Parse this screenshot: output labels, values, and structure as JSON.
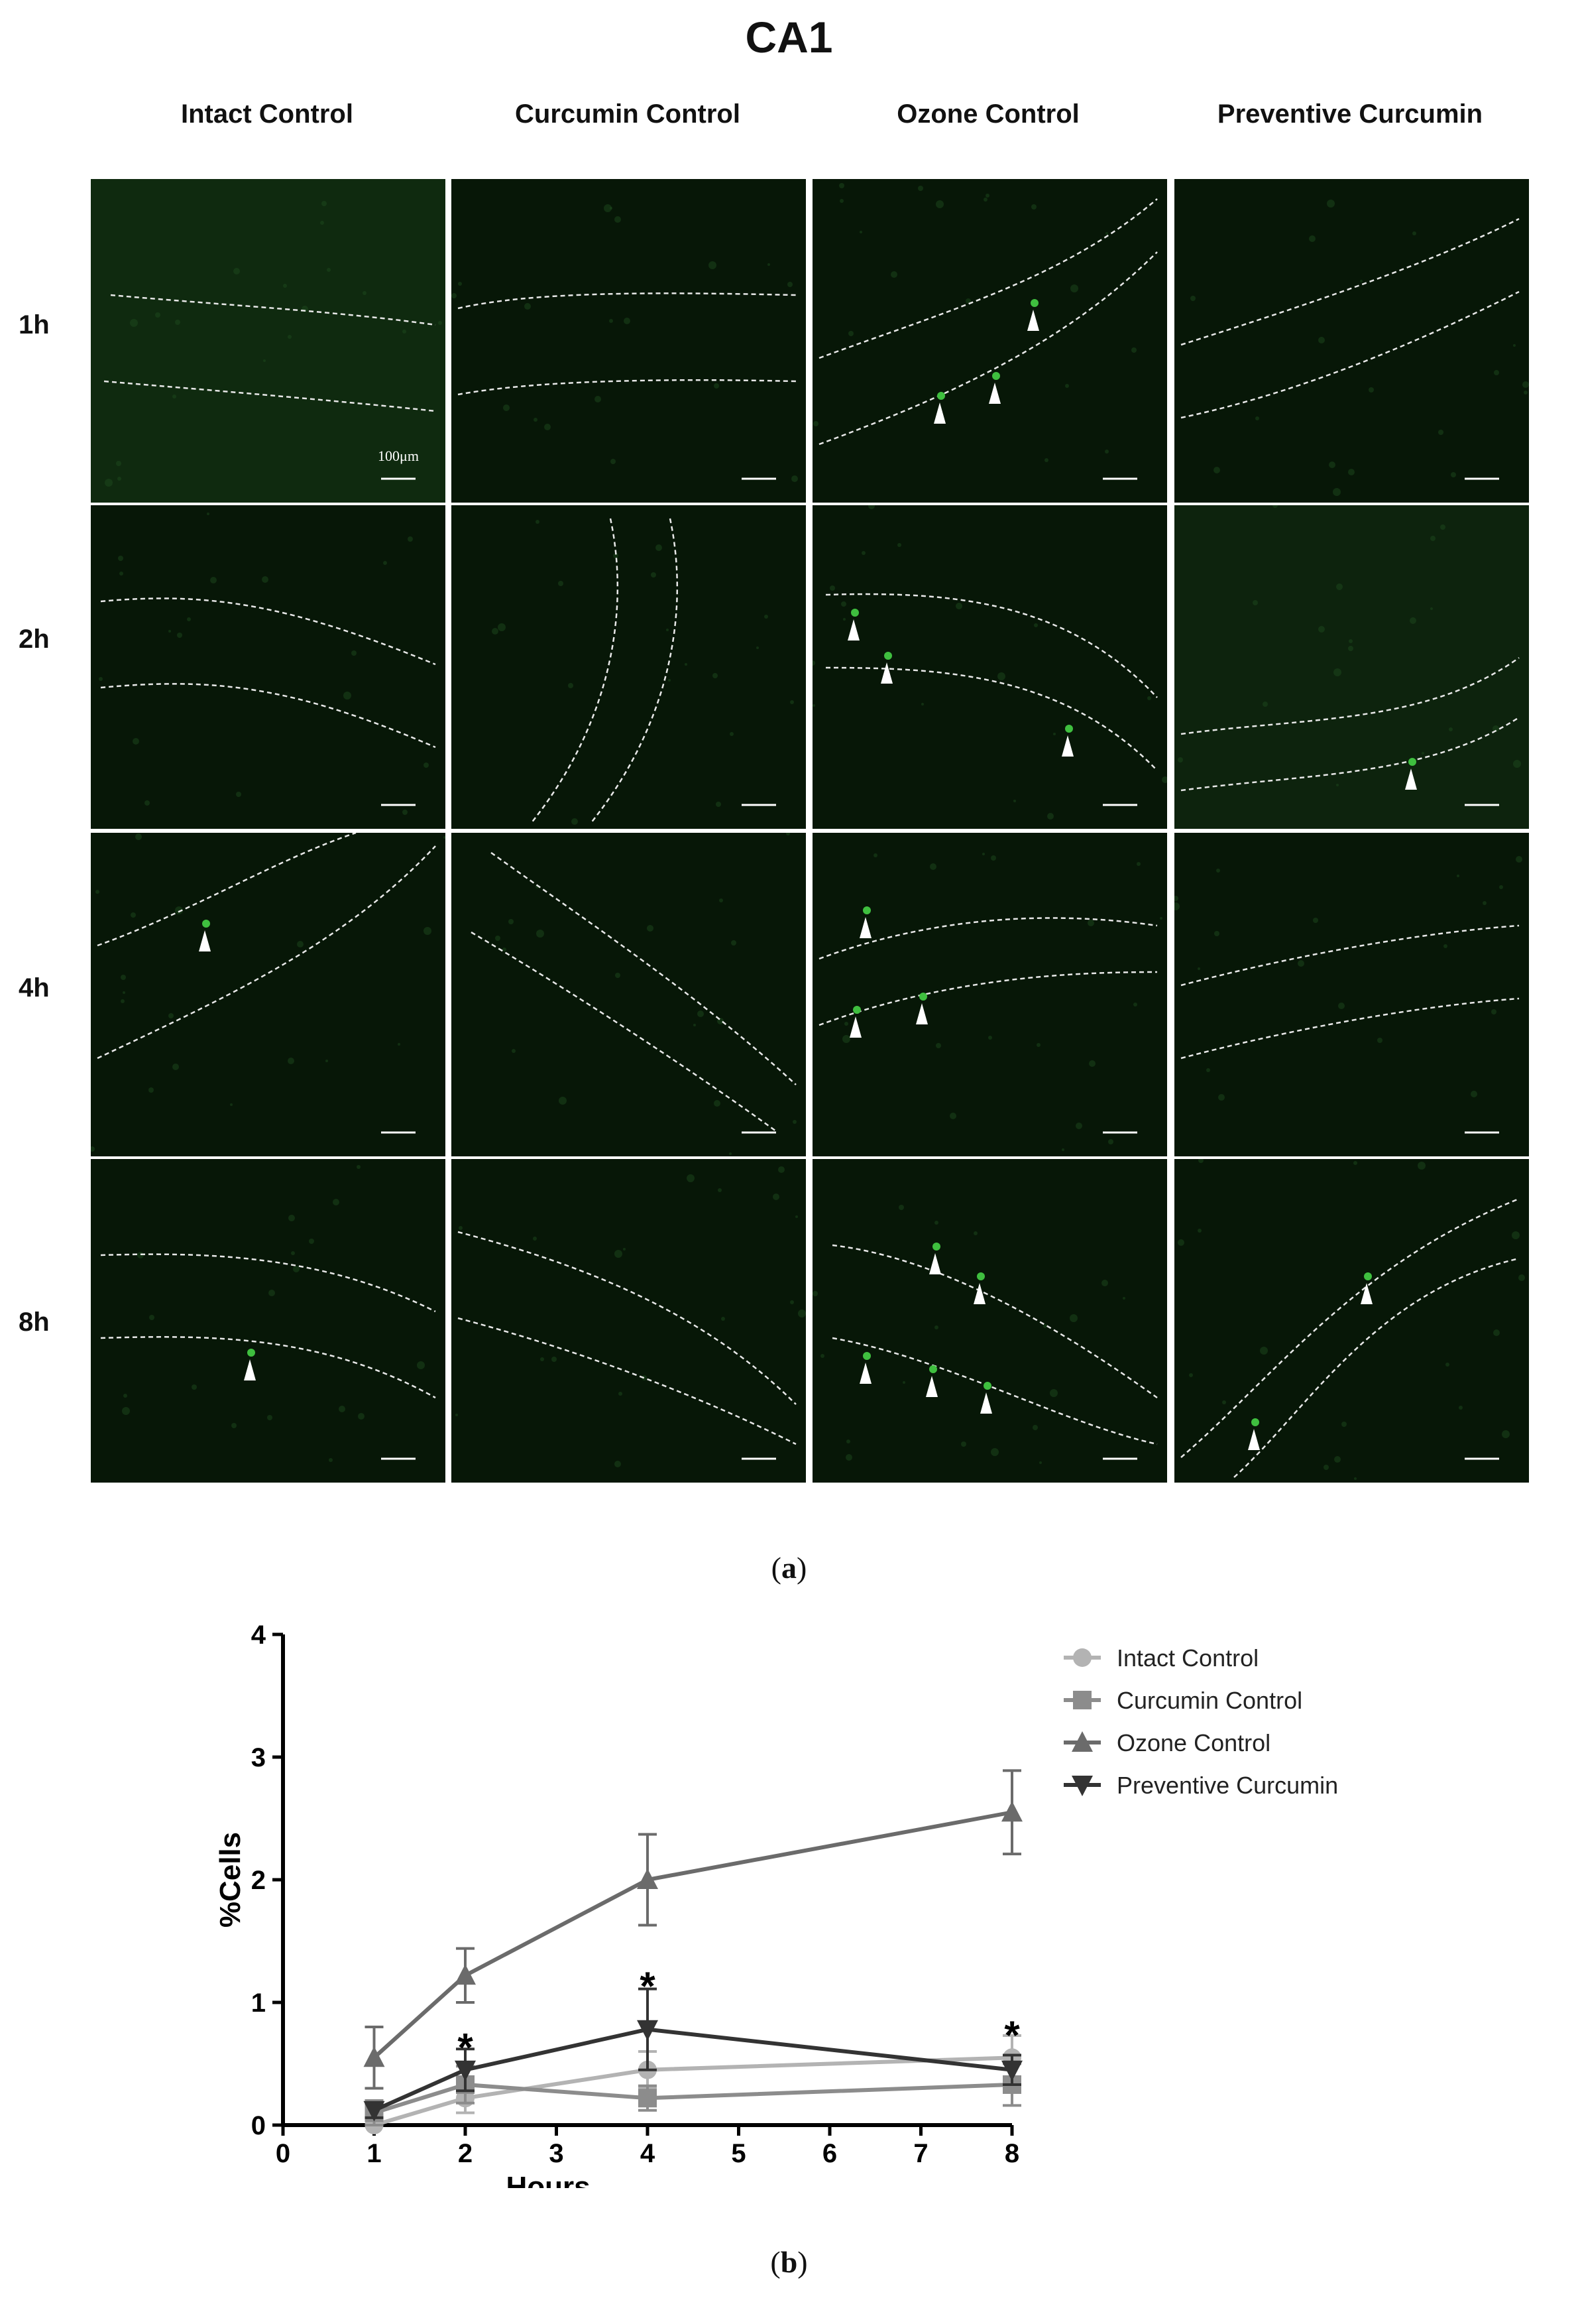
{
  "figure_title": "CA1",
  "columns": [
    "Intact Control",
    "Curcumin Control",
    "Ozone Control",
    "Preventive Curcumin"
  ],
  "rows": [
    "1h",
    "2h",
    "4h",
    "8h"
  ],
  "scale_bar_label": "100μm",
  "panel_labels": {
    "a": "a",
    "b": "b"
  },
  "chart_data": {
    "type": "line",
    "title": "",
    "xlabel": "Hours",
    "ylabel": "%Cells",
    "xlim": [
      0,
      8
    ],
    "ylim": [
      0,
      4
    ],
    "xticks": [
      0,
      1,
      2,
      3,
      4,
      5,
      6,
      7,
      8
    ],
    "yticks": [
      0,
      1,
      2,
      3,
      4
    ],
    "x": [
      1,
      2,
      4,
      8
    ],
    "legend_position": "top-right",
    "series": [
      {
        "name": "Intact Control",
        "marker": "circle",
        "color": "#b3b3b3",
        "values": [
          0.0,
          0.22,
          0.45,
          0.55
        ],
        "errors": [
          0.05,
          0.12,
          0.15,
          0.18
        ]
      },
      {
        "name": "Curcumin Control",
        "marker": "square",
        "color": "#8c8c8c",
        "values": [
          0.1,
          0.33,
          0.22,
          0.33
        ],
        "errors": [
          0.1,
          0.15,
          0.1,
          0.17
        ]
      },
      {
        "name": "Ozone Control",
        "marker": "triangle-up",
        "color": "#6b6b6b",
        "values": [
          0.55,
          1.22,
          2.0,
          2.55
        ],
        "errors": [
          0.25,
          0.22,
          0.37,
          0.34
        ]
      },
      {
        "name": "Preventive Curcumin",
        "marker": "triangle-down",
        "color": "#333333",
        "values": [
          0.12,
          0.45,
          0.78,
          0.45
        ],
        "errors": [
          0.06,
          0.17,
          0.33,
          0.12
        ]
      }
    ],
    "annotations": [
      {
        "x": 2,
        "y": 0.62,
        "text": "*"
      },
      {
        "x": 4,
        "y": 1.12,
        "text": "*"
      },
      {
        "x": 8,
        "y": 0.72,
        "text": "*"
      }
    ]
  }
}
